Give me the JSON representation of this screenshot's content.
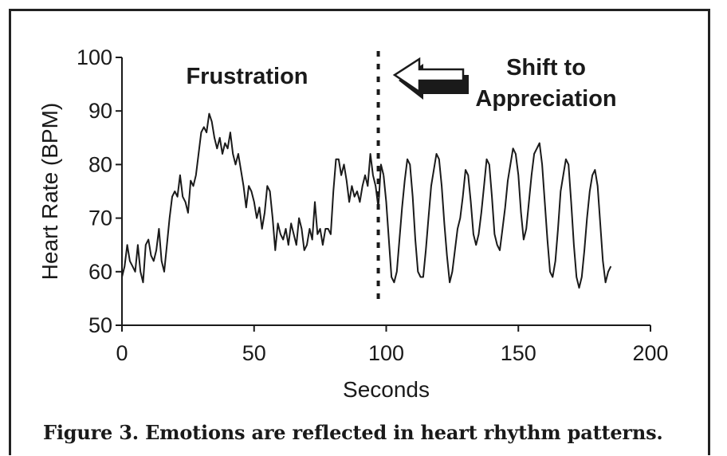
{
  "caption": "Figure 3. Emotions are reflected in heart rhythm patterns.",
  "chart_data": {
    "type": "line",
    "title": "",
    "xlabel": "Seconds",
    "ylabel": "Heart Rate (BPM)",
    "xlim": [
      0,
      200
    ],
    "ylim": [
      50,
      100
    ],
    "xticks": [
      0,
      50,
      100,
      150,
      200
    ],
    "yticks": [
      50,
      60,
      70,
      80,
      90,
      100
    ],
    "grid": false,
    "line_color": "#1a1a1a",
    "annotations": {
      "frustration": "Frustration",
      "shift_line1": "Shift to",
      "shift_line2": "Appreciation"
    },
    "marker_x": 97,
    "series": [
      {
        "values": [
          [
            0,
            59
          ],
          [
            1,
            61
          ],
          [
            2,
            65
          ],
          [
            3,
            62
          ],
          [
            4,
            61
          ],
          [
            5,
            60
          ],
          [
            6,
            65
          ],
          [
            7,
            60
          ],
          [
            8,
            58
          ],
          [
            9,
            65
          ],
          [
            10,
            66
          ],
          [
            11,
            63
          ],
          [
            12,
            62
          ],
          [
            13,
            64
          ],
          [
            14,
            68
          ],
          [
            15,
            62
          ],
          [
            16,
            60
          ],
          [
            17,
            65
          ],
          [
            18,
            70
          ],
          [
            19,
            74
          ],
          [
            20,
            75
          ],
          [
            21,
            74
          ],
          [
            22,
            78
          ],
          [
            23,
            74
          ],
          [
            24,
            73
          ],
          [
            25,
            71
          ],
          [
            26,
            77
          ],
          [
            27,
            76
          ],
          [
            28,
            78
          ],
          [
            29,
            82
          ],
          [
            30,
            86
          ],
          [
            31,
            87
          ],
          [
            32,
            86
          ],
          [
            33,
            89.5
          ],
          [
            34,
            88
          ],
          [
            35,
            85
          ],
          [
            36,
            83
          ],
          [
            37,
            85
          ],
          [
            38,
            82
          ],
          [
            39,
            84
          ],
          [
            40,
            83
          ],
          [
            41,
            86
          ],
          [
            42,
            82
          ],
          [
            43,
            80
          ],
          [
            44,
            82
          ],
          [
            45,
            79
          ],
          [
            46,
            76
          ],
          [
            47,
            72
          ],
          [
            48,
            76
          ],
          [
            49,
            75
          ],
          [
            50,
            73
          ],
          [
            51,
            70
          ],
          [
            52,
            72
          ],
          [
            53,
            68
          ],
          [
            54,
            71
          ],
          [
            55,
            76
          ],
          [
            56,
            75
          ],
          [
            57,
            70
          ],
          [
            58,
            64
          ],
          [
            59,
            69
          ],
          [
            60,
            67
          ],
          [
            61,
            66
          ],
          [
            62,
            68
          ],
          [
            63,
            65
          ],
          [
            64,
            69
          ],
          [
            65,
            67
          ],
          [
            66,
            65
          ],
          [
            67,
            70
          ],
          [
            68,
            68
          ],
          [
            69,
            64
          ],
          [
            70,
            65
          ],
          [
            71,
            68
          ],
          [
            72,
            66
          ],
          [
            73,
            73
          ],
          [
            74,
            67
          ],
          [
            75,
            68
          ],
          [
            76,
            65
          ],
          [
            77,
            68
          ],
          [
            78,
            68
          ],
          [
            79,
            67
          ],
          [
            80,
            75
          ],
          [
            81,
            81
          ],
          [
            82,
            81
          ],
          [
            83,
            78
          ],
          [
            84,
            80
          ],
          [
            85,
            77
          ],
          [
            86,
            73
          ],
          [
            87,
            76
          ],
          [
            88,
            74
          ],
          [
            89,
            75
          ],
          [
            90,
            73
          ],
          [
            91,
            76
          ],
          [
            92,
            78
          ],
          [
            93,
            76
          ],
          [
            94,
            82
          ],
          [
            95,
            78
          ],
          [
            96,
            76
          ],
          [
            97,
            72
          ],
          [
            98,
            80
          ],
          [
            99,
            78
          ]
        ]
      },
      {
        "values": [
          [
            99,
            78
          ],
          [
            100,
            73
          ],
          [
            101,
            66
          ],
          [
            102,
            59
          ],
          [
            103,
            58
          ],
          [
            104,
            60
          ],
          [
            105,
            66
          ],
          [
            106,
            72
          ],
          [
            107,
            77
          ],
          [
            108,
            81
          ],
          [
            109,
            80
          ],
          [
            110,
            74
          ],
          [
            111,
            66
          ],
          [
            112,
            60
          ],
          [
            113,
            59
          ],
          [
            114,
            59
          ],
          [
            115,
            64
          ],
          [
            116,
            70
          ],
          [
            117,
            76
          ],
          [
            118,
            79
          ],
          [
            119,
            82
          ],
          [
            120,
            81
          ],
          [
            121,
            76
          ],
          [
            122,
            69
          ],
          [
            123,
            63
          ],
          [
            124,
            58
          ],
          [
            125,
            60
          ],
          [
            126,
            64
          ],
          [
            127,
            68
          ],
          [
            128,
            70
          ],
          [
            129,
            74
          ],
          [
            130,
            79
          ],
          [
            131,
            78
          ],
          [
            132,
            73
          ],
          [
            133,
            67
          ],
          [
            134,
            65
          ],
          [
            135,
            67
          ],
          [
            136,
            71
          ],
          [
            137,
            76
          ],
          [
            138,
            81
          ],
          [
            139,
            80
          ],
          [
            140,
            74
          ],
          [
            141,
            67
          ],
          [
            142,
            65
          ],
          [
            143,
            64
          ],
          [
            144,
            68
          ],
          [
            145,
            72
          ],
          [
            146,
            77
          ],
          [
            147,
            80
          ],
          [
            148,
            83
          ],
          [
            149,
            82
          ],
          [
            150,
            78
          ],
          [
            151,
            71
          ],
          [
            152,
            66
          ],
          [
            153,
            68
          ],
          [
            154,
            73
          ],
          [
            155,
            78
          ],
          [
            156,
            82
          ],
          [
            157,
            83
          ],
          [
            158,
            84
          ],
          [
            159,
            80
          ],
          [
            160,
            73
          ],
          [
            161,
            66
          ],
          [
            162,
            60
          ],
          [
            163,
            59
          ],
          [
            164,
            62
          ],
          [
            165,
            68
          ],
          [
            166,
            75
          ],
          [
            167,
            78
          ],
          [
            168,
            81
          ],
          [
            169,
            80
          ],
          [
            170,
            73
          ],
          [
            171,
            65
          ],
          [
            172,
            59
          ],
          [
            173,
            57
          ],
          [
            174,
            59
          ],
          [
            175,
            64
          ],
          [
            176,
            70
          ],
          [
            177,
            75
          ],
          [
            178,
            78
          ],
          [
            179,
            79
          ],
          [
            180,
            76
          ],
          [
            181,
            69
          ],
          [
            182,
            62
          ],
          [
            183,
            58
          ],
          [
            184,
            60
          ],
          [
            185,
            61
          ]
        ]
      }
    ]
  }
}
